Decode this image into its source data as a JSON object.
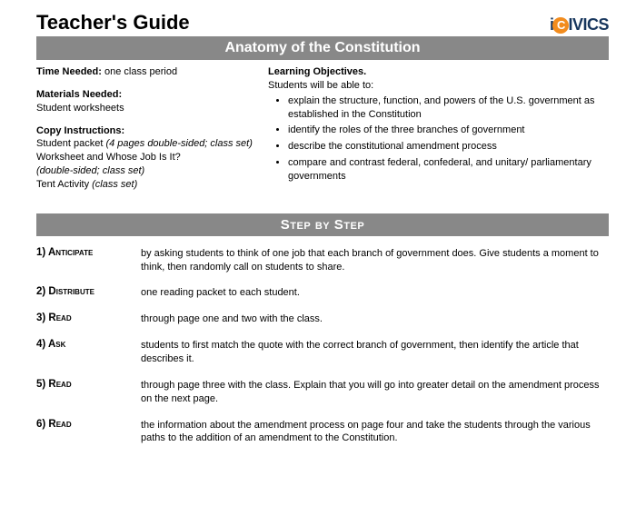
{
  "header": {
    "title": "Teacher's Guide",
    "logo_pre": "i",
    "logo_c": "C",
    "logo_post": "IVICS"
  },
  "banner": "Anatomy of the Constitution",
  "meta_left": {
    "time_label": "Time Needed:",
    "time_value": " one class period",
    "materials_label": "Materials Needed:",
    "materials_value": "Student worksheets",
    "copy_label": "Copy Instructions:",
    "copy_1a": "Student packet ",
    "copy_1b": "(4 pages double-sided; class set)",
    "copy_2a": "Worksheet and Whose Job Is It? ",
    "copy_2b": "(double-sided; class set)",
    "copy_3a": "Tent Activity ",
    "copy_3b": "(class set)"
  },
  "meta_right": {
    "obj_label": "Learning Objectives.",
    "obj_intro": "Students will be able to:",
    "objectives": [
      "explain the structure, function, and powers of the U.S. government as established in the Constitution",
      "identify the roles of the three branches of government",
      "describe the constitutional amendment process",
      "compare and contrast federal, confederal, and unitary/ parliamentary governments"
    ]
  },
  "step_banner": "Step by Step",
  "steps": [
    {
      "label": "1) Anticipate",
      "text": "by asking students to think of one job that each branch of government does. Give students a moment to think, then randomly call on students to share."
    },
    {
      "label": "2) Distribute",
      "text": "one reading packet to each student."
    },
    {
      "label": "3) Read",
      "text": "through page one and two with the class."
    },
    {
      "label": "4) Ask",
      "text": "students to first match the quote with the correct branch of government, then identify the article that describes it."
    },
    {
      "label": "5) Read",
      "text": "through page three with the class. Explain that you will go into greater detail on the amendment process on the next page."
    },
    {
      "label": "6) Read",
      "text": "the information about the amendment process on page four and take the students through the various paths to the addition of an amendment to the Constitution."
    }
  ],
  "colors": {
    "banner_bg": "#888888",
    "logo_navy": "#17365d",
    "logo_orange": "#f28c1e"
  }
}
